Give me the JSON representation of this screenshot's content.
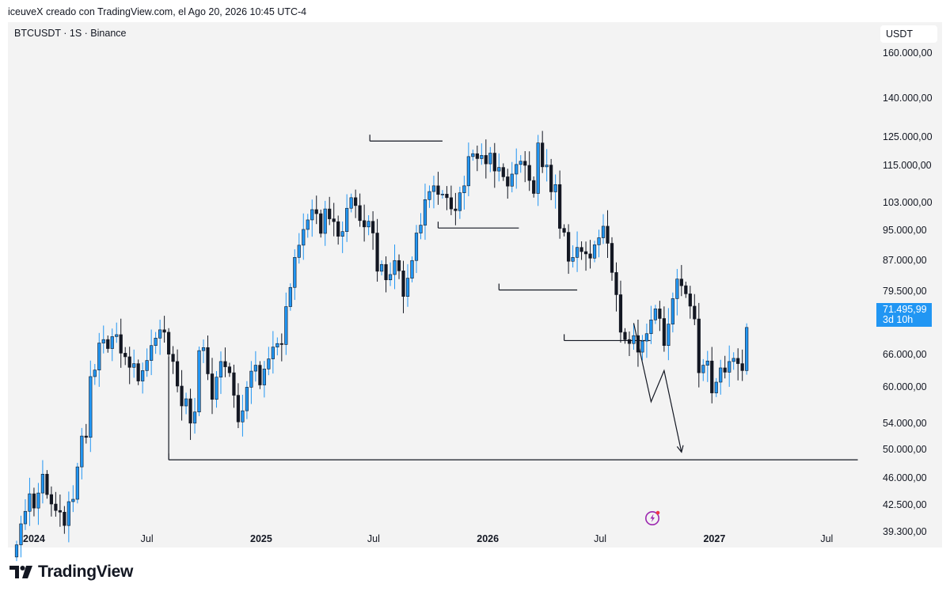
{
  "header": {
    "caption": "iceuveX creado con TradingView.com, el Ago 20, 2026 10:45 UTC-4",
    "symbol": "BTCUSDT · 1S · Binance",
    "currency": "USDT"
  },
  "price_tag": {
    "price": "71.495,99",
    "countdown": "3d 10h"
  },
  "footer": {
    "logo_text": "TradingView"
  },
  "colors": {
    "up": "#2196f3",
    "down": "#131722",
    "panel": "#f3f3f3",
    "drawing": "#131722",
    "price_tag": "#2196f3"
  },
  "chart_data": {
    "type": "candlestick",
    "scale": "log",
    "ylim": [
      37500,
      175000
    ],
    "y_ticks": [
      {
        "value": 160000,
        "label": "160.000,00"
      },
      {
        "value": 140000,
        "label": "140.000,00"
      },
      {
        "value": 125000,
        "label": "125.000,00"
      },
      {
        "value": 115000,
        "label": "115.000,00"
      },
      {
        "value": 103000,
        "label": "103.000,00"
      },
      {
        "value": 95000,
        "label": "95.000,00"
      },
      {
        "value": 87000,
        "label": "87.000,00"
      },
      {
        "value": 79500,
        "label": "79.500,00"
      },
      {
        "value": 66000,
        "label": "66.000,00"
      },
      {
        "value": 60000,
        "label": "60.000,00"
      },
      {
        "value": 54000,
        "label": "54.000,00"
      },
      {
        "value": 50000,
        "label": "50.000,00"
      },
      {
        "value": 46000,
        "label": "46.000,00"
      },
      {
        "value": 42500,
        "label": "42.500,00"
      },
      {
        "value": 39300,
        "label": "39.300,00"
      }
    ],
    "x_ticks": [
      {
        "date": "2024-01-01",
        "label": "2024",
        "bold": true
      },
      {
        "date": "2024-07-01",
        "label": "Jul",
        "bold": false
      },
      {
        "date": "2025-01-01",
        "label": "2025",
        "bold": true
      },
      {
        "date": "2025-07-01",
        "label": "Jul",
        "bold": false
      },
      {
        "date": "2026-01-01",
        "label": "2026",
        "bold": true
      },
      {
        "date": "2026-07-01",
        "label": "Jul",
        "bold": false
      },
      {
        "date": "2027-01-01",
        "label": "2027",
        "bold": true
      },
      {
        "date": "2027-07-01",
        "label": "Jul",
        "bold": false
      }
    ],
    "x_range": [
      "2023-11-20",
      "2027-09-10"
    ],
    "last_price": 71495.99,
    "candle_closes": [
      37800,
      40200,
      41700,
      43900,
      42100,
      44000,
      46500,
      43800,
      42600,
      41800,
      41600,
      40000,
      42900,
      43200,
      47500,
      52000,
      51800,
      61900,
      63100,
      68300,
      69000,
      67200,
      69600,
      70000,
      66300,
      65600,
      63600,
      64300,
      61100,
      63000,
      64900,
      67800,
      69300,
      71000,
      70500,
      66100,
      64700,
      60200,
      56800,
      58000,
      54000,
      55800,
      66800,
      67400,
      62400,
      57900,
      61800,
      64700,
      63700,
      62600,
      58600,
      54200,
      56000,
      60000,
      62900,
      64000,
      60400,
      63300,
      65200,
      67500,
      68200,
      68000,
      76000,
      80400,
      87800,
      91000,
      95300,
      98000,
      101000,
      99800,
      94200,
      101200,
      98300,
      97500,
      93400,
      94700,
      101400,
      104600,
      102200,
      97800,
      96000,
      97600,
      94300,
      84300,
      86000,
      82200,
      83500,
      87000,
      84400,
      78300,
      82600,
      87000,
      94300,
      96500,
      104000,
      106500,
      108300,
      105600,
      105700,
      104600,
      101200,
      100700,
      106100,
      108300,
      118000,
      119000,
      117300,
      118400,
      115500,
      119200,
      113100,
      114300,
      111200,
      108200,
      112100,
      115300,
      116400,
      115000,
      110000,
      105900,
      122800,
      114500,
      115100,
      106400,
      108700,
      95600,
      94500,
      86800,
      87800,
      90400,
      89300,
      88700,
      87600,
      91100,
      93000,
      96200,
      91500,
      84000,
      78700,
      70500,
      69000,
      68200,
      69800,
      66500,
      68700,
      70200,
      73100,
      75500,
      73400,
      67800,
      72200,
      77800,
      82400,
      80800,
      78900,
      76100,
      73300,
      62600,
      64000,
      64800,
      59000,
      60900,
      63500,
      62700,
      64700,
      65300,
      64300,
      63000,
      71496
    ],
    "levels": [
      {
        "price": 48500,
        "from": "2024-08-05",
        "to": "2027-08-20"
      },
      {
        "price": 123500,
        "from": "2025-06-25",
        "to": "2025-10-20"
      },
      {
        "price": 95700,
        "from": "2025-10-13",
        "to": "2026-02-20"
      },
      {
        "price": 79800,
        "from": "2026-01-19",
        "to": "2026-05-25"
      },
      {
        "price": 68800,
        "from": "2026-05-04",
        "to": "2026-09-20"
      }
    ],
    "projection": [
      {
        "date": "2026-08-24",
        "price": 72400
      },
      {
        "date": "2026-09-21",
        "price": 57500
      },
      {
        "date": "2026-10-12",
        "price": 63000
      },
      {
        "date": "2026-11-09",
        "price": 49600
      }
    ]
  }
}
